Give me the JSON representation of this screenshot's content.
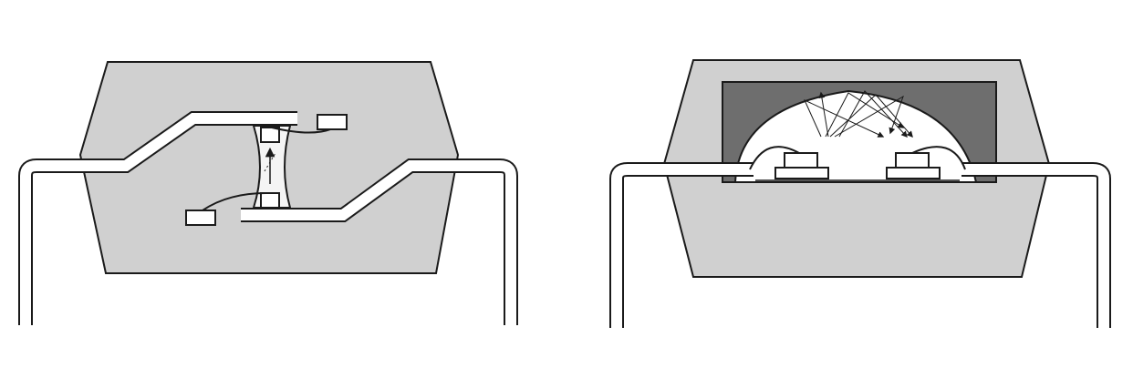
{
  "figure": {
    "panels": [
      {
        "id": "face-to-face",
        "text": ""
      },
      {
        "id": "dome-reflective",
        "text": ""
      }
    ]
  },
  "colors": {
    "background": "#ffffff",
    "package_body": "#d0d0d0",
    "outline": "#1a1a1a",
    "lead_fill": "#ffffff",
    "dome_cavity": "#6e6e6e",
    "dome_interior": "#ffffff"
  }
}
